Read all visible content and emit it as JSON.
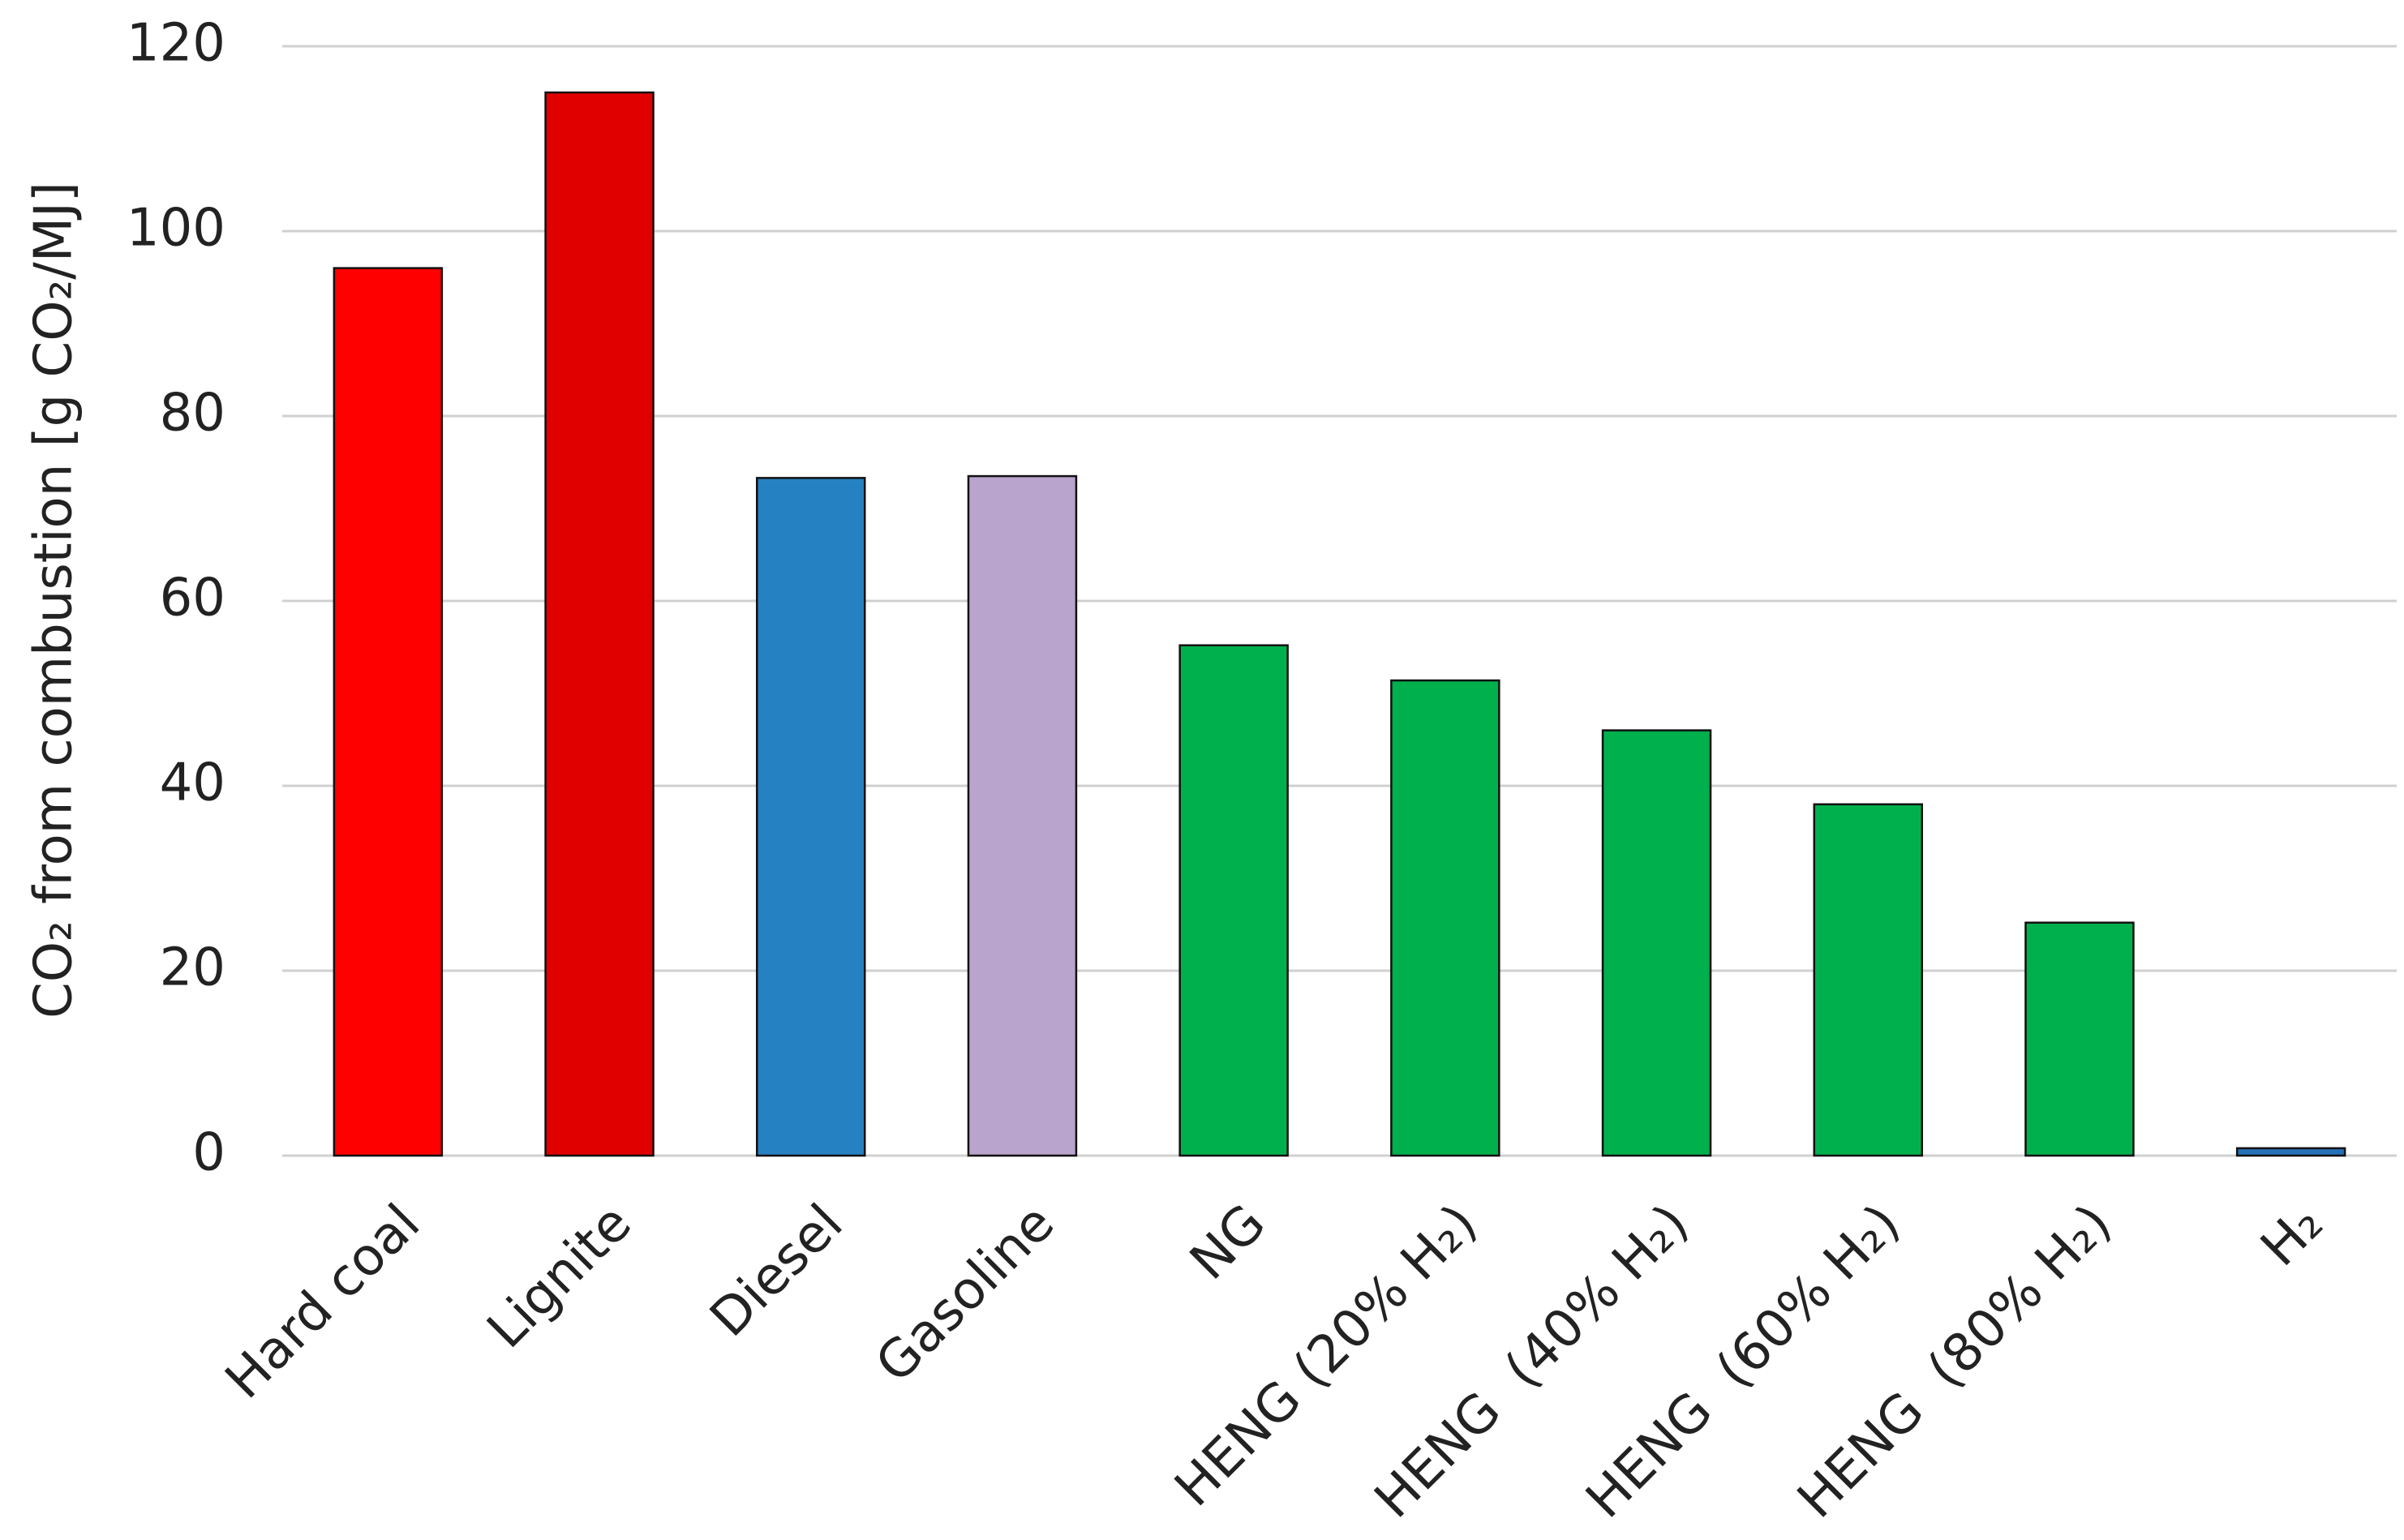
{
  "chart_data": {
    "type": "bar",
    "y_label": "CO₂ from combustion [g CO₂/MJ]",
    "categories": [
      "Hard coal",
      "Lignite",
      "Diesel",
      "Gasoline",
      "NG",
      "HENG (20% H₂)",
      "HENG  (40% H₂)",
      "HENG  (60% H₂)",
      "HENG  (80% H₂)",
      "H₂"
    ],
    "values": [
      96,
      115,
      73.3,
      73.5,
      55.2,
      51.4,
      46,
      38,
      25.2,
      0.8
    ],
    "colors": [
      "#ff0000",
      "#e00000",
      "#2681c2",
      "#b8a4cc",
      "#00b04c",
      "#00b04c",
      "#00b04c",
      "#00b04c",
      "#00b04c",
      "#2671b8"
    ],
    "ylim": [
      0,
      120
    ],
    "yticks": [
      0,
      20,
      40,
      60,
      80,
      100,
      120
    ],
    "grid": true
  }
}
